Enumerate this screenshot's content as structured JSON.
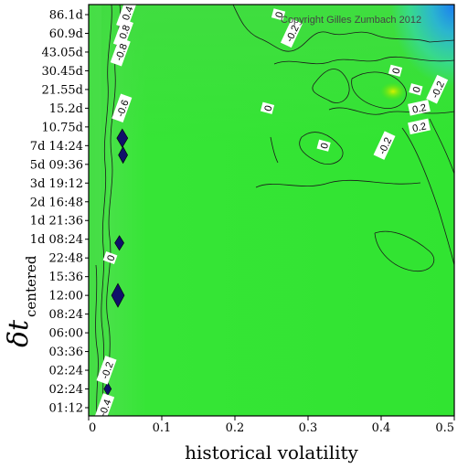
{
  "chart_data": {
    "type": "heatmap",
    "subtype": "contour",
    "xlabel": "historical volatility",
    "ylabel_main": "δt",
    "ylabel_sub": "centered",
    "xlim": [
      0,
      0.5
    ],
    "x_ticks": [
      "0",
      "0.1",
      "0.2",
      "0.3",
      "0.4",
      "0.5"
    ],
    "y_ticks": [
      "86.1d",
      "60.9d",
      "43.05d",
      "30.45d",
      "21.55d",
      "15.2d",
      "10.75d",
      "7d 14:24",
      "5d 09:36",
      "3d 19:12",
      "2d 16:48",
      "1d 21:36",
      "1d 08:24",
      "22:48",
      "15:36",
      "12:00",
      "08:24",
      "06:00",
      "03:36",
      "02:24",
      "02:24",
      "01:12"
    ],
    "contour_labels": [
      {
        "text": "-0.4",
        "x": 0.052,
        "y": "86.1d"
      },
      {
        "text": "-0.8",
        "x": 0.048,
        "y": "60.9d"
      },
      {
        "text": "-0.8",
        "x": 0.044,
        "y": "43.05d"
      },
      {
        "text": "-0.6",
        "x": 0.046,
        "y": "15.2d"
      },
      {
        "text": "-0.2",
        "x": 0.278,
        "y": "60.9d"
      },
      {
        "text": "0",
        "x": 0.26,
        "y": "86.1d"
      },
      {
        "text": "0",
        "x": 0.42,
        "y": "30.45d"
      },
      {
        "text": "0",
        "x": 0.448,
        "y": "21.55d"
      },
      {
        "text": "-0.2",
        "x": 0.477,
        "y": "21.55d"
      },
      {
        "text": "0",
        "x": 0.245,
        "y": "15.2d"
      },
      {
        "text": "0.2",
        "x": 0.452,
        "y": "15.2d"
      },
      {
        "text": "0.2",
        "x": 0.452,
        "y": "10.75d"
      },
      {
        "text": "-0.2",
        "x": 0.405,
        "y": "7d 14:24"
      },
      {
        "text": "0",
        "x": 0.322,
        "y": "7d 14:24"
      },
      {
        "text": "0",
        "x": 0.03,
        "y": "22:48"
      },
      {
        "text": "-0.2",
        "x": 0.025,
        "y": "02:24"
      },
      {
        "text": "-0.4",
        "x": 0.022,
        "y": "01:12"
      }
    ],
    "colormap": {
      "base": "#2fe52f",
      "positive": "#1fe000",
      "negative": "#1aa3f0",
      "strong_negative": "#10106a"
    },
    "grid": false,
    "legend": "none",
    "annotation": "Copyright Gilles Zumbach 2012"
  }
}
